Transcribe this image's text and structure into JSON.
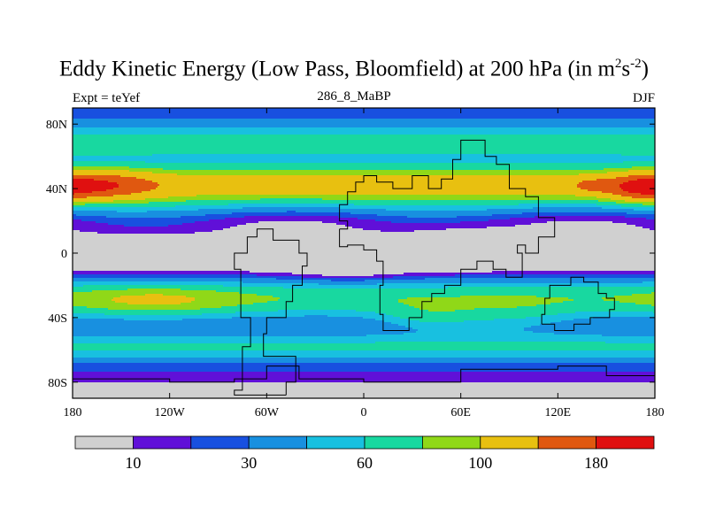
{
  "chart_data": {
    "type": "heatmap",
    "title_main": "Eddy Kinetic Energy (Low Pass, Bloomfield) at 200 hPa (in m",
    "title_sup1": "2",
    "title_mid": "s",
    "title_sup2": "-2",
    "title_end": ")",
    "subtitle_left": "Expt = teYef",
    "subtitle_center": "286_8_MaBP",
    "subtitle_right": "DJF",
    "xlim": [
      -180,
      180
    ],
    "ylim": [
      -90,
      90
    ],
    "x_ticks": [
      {
        "value": -180,
        "label": "180"
      },
      {
        "value": -120,
        "label": "120W"
      },
      {
        "value": -60,
        "label": "60W"
      },
      {
        "value": 0,
        "label": "0"
      },
      {
        "value": 60,
        "label": "60E"
      },
      {
        "value": 120,
        "label": "120E"
      },
      {
        "value": 180,
        "label": "180"
      }
    ],
    "y_ticks": [
      {
        "value": 80,
        "label": "80N"
      },
      {
        "value": 40,
        "label": "40N"
      },
      {
        "value": 0,
        "label": "0"
      },
      {
        "value": -40,
        "label": "40S"
      },
      {
        "value": -80,
        "label": "80S"
      }
    ],
    "levels": [
      10,
      20,
      30,
      45,
      60,
      80,
      100,
      140,
      180
    ],
    "colorbar_labels": [
      {
        "level_index": 0,
        "label": "10"
      },
      {
        "level_index": 2,
        "label": "30"
      },
      {
        "level_index": 4,
        "label": "60"
      },
      {
        "level_index": 6,
        "label": "100"
      },
      {
        "level_index": 8,
        "label": "180"
      }
    ],
    "colors": [
      "#d0d0d0",
      "#6010d8",
      "#1850e0",
      "#1890e0",
      "#18c0e0",
      "#18d8a0",
      "#90d818",
      "#e8c010",
      "#e05810",
      "#e01010"
    ],
    "continent_outlines": [
      {
        "name": "south-america",
        "points": [
          [
            -48,
            -88
          ],
          [
            -80,
            -85
          ],
          [
            -75,
            -58
          ],
          [
            -70,
            -40
          ],
          [
            -76,
            -10
          ],
          [
            -80,
            0
          ],
          [
            -72,
            10
          ],
          [
            -66,
            15
          ],
          [
            -56,
            8
          ],
          [
            -40,
            0
          ],
          [
            -35,
            -8
          ],
          [
            -38,
            -20
          ],
          [
            -44,
            -30
          ],
          [
            -48,
            -40
          ],
          [
            -60,
            -50
          ],
          [
            -62,
            -64
          ],
          [
            -48,
            -64
          ],
          [
            -42,
            -80
          ],
          [
            -48,
            -88
          ]
        ]
      },
      {
        "name": "africa-eurasia",
        "points": [
          [
            -15,
            15
          ],
          [
            -10,
            20
          ],
          [
            -15,
            30
          ],
          [
            -10,
            38
          ],
          [
            -5,
            44
          ],
          [
            0,
            48
          ],
          [
            8,
            44
          ],
          [
            18,
            40
          ],
          [
            30,
            48
          ],
          [
            40,
            40
          ],
          [
            48,
            46
          ],
          [
            55,
            58
          ],
          [
            60,
            70
          ],
          [
            68,
            70
          ],
          [
            75,
            60
          ],
          [
            82,
            55
          ],
          [
            90,
            50
          ],
          [
            90,
            40
          ],
          [
            100,
            35
          ],
          [
            108,
            22
          ],
          [
            115,
            22
          ],
          [
            118,
            10
          ],
          [
            108,
            0
          ],
          [
            100,
            5
          ],
          [
            95,
            0
          ],
          [
            98,
            -15
          ],
          [
            88,
            -10
          ],
          [
            80,
            -5
          ],
          [
            70,
            -10
          ],
          [
            60,
            -20
          ],
          [
            50,
            -25
          ],
          [
            42,
            -30
          ],
          [
            36,
            -40
          ],
          [
            28,
            -48
          ],
          [
            18,
            -48
          ],
          [
            12,
            -38
          ],
          [
            10,
            -20
          ],
          [
            12,
            -5
          ],
          [
            8,
            2
          ],
          [
            0,
            5
          ],
          [
            -10,
            4
          ],
          [
            -15,
            15
          ]
        ]
      },
      {
        "name": "australia",
        "points": [
          [
            110,
            -44
          ],
          [
            118,
            -48
          ],
          [
            130,
            -44
          ],
          [
            140,
            -40
          ],
          [
            152,
            -35
          ],
          [
            155,
            -28
          ],
          [
            150,
            -25
          ],
          [
            145,
            -18
          ],
          [
            136,
            -15
          ],
          [
            128,
            -20
          ],
          [
            115,
            -28
          ],
          [
            112,
            -38
          ],
          [
            110,
            -44
          ]
        ]
      },
      {
        "name": "antarctica",
        "points": [
          [
            -180,
            -78
          ],
          [
            -120,
            -80
          ],
          [
            -80,
            -78
          ],
          [
            -60,
            -70
          ],
          [
            -40,
            -78
          ],
          [
            0,
            -80
          ],
          [
            60,
            -72
          ],
          [
            120,
            -70
          ],
          [
            150,
            -76
          ],
          [
            180,
            -78
          ]
        ]
      }
    ]
  }
}
